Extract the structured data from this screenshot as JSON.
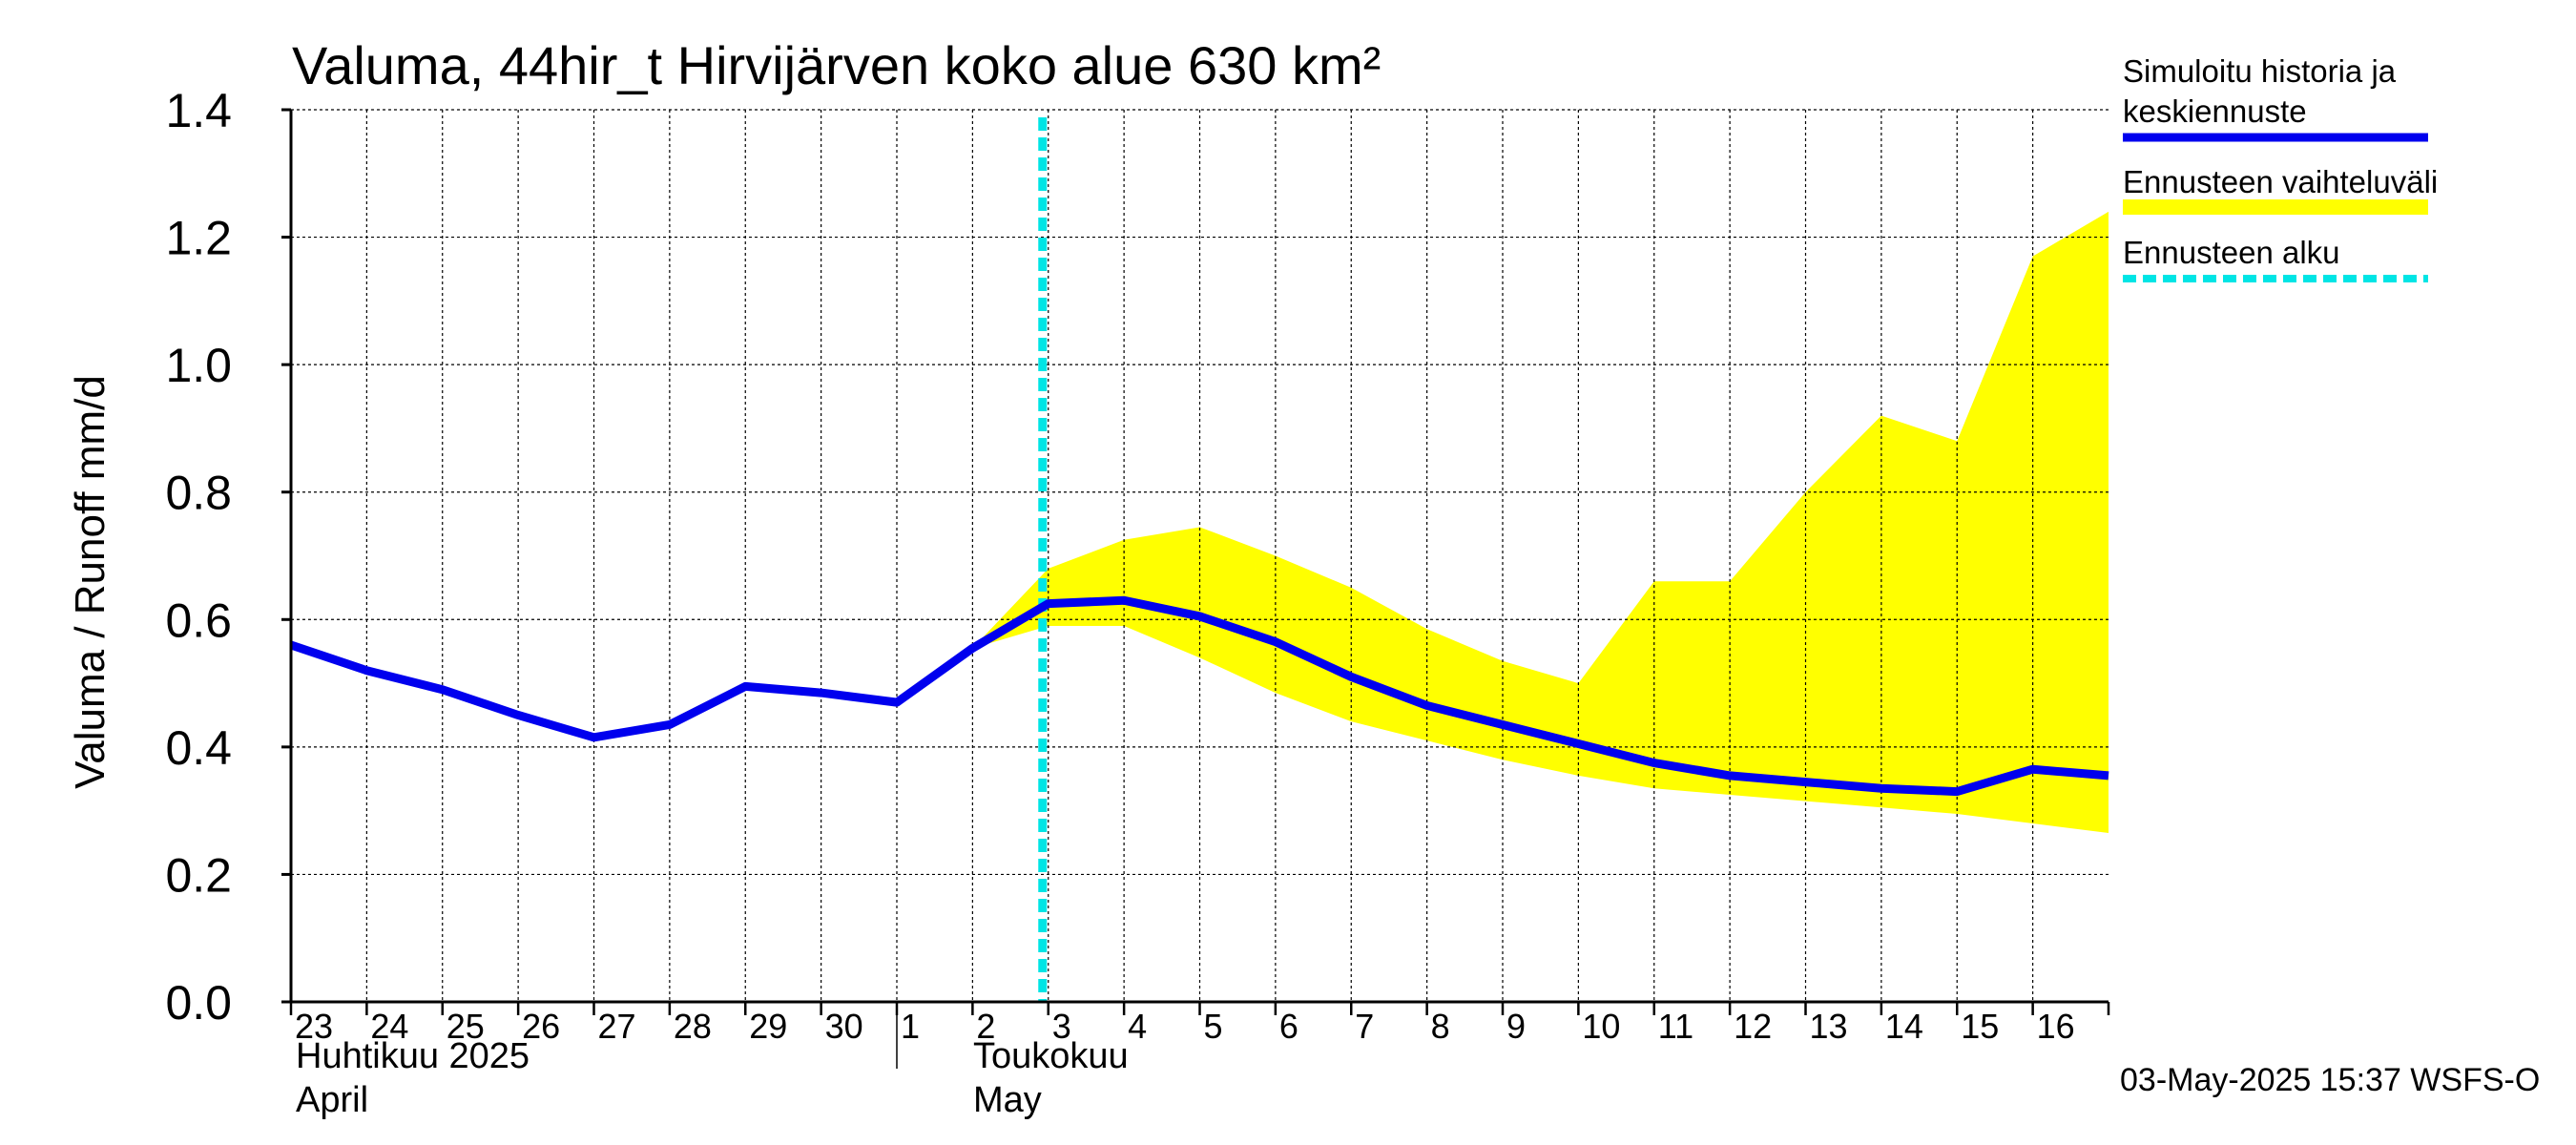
{
  "title": "Valuma, 44hir_t Hirvijärven koko alue 630 km²",
  "ylabel": "Valuma / Runoff    mm/d",
  "timestamp": "03-May-2025 15:37 WSFS-O",
  "month_labels": {
    "april_fi": "Huhtikuu  2025",
    "april_en": "April",
    "may_fi": "Toukokuu",
    "may_en": "May"
  },
  "legend": {
    "history_line1": "Simuloitu historia ja",
    "history_line2": "keskiennuste",
    "range": "Ennusteen vaihteluväli",
    "forecast_start": "Ennusteen alku"
  },
  "colors": {
    "history": "#0000ee",
    "range": "#ffff00",
    "forecast_start": "#00e5e5",
    "grid": "#000000"
  },
  "chart_data": {
    "type": "line",
    "title": "Valuma, 44hir_t Hirvijärven koko alue 630 km²",
    "xlabel": "",
    "ylabel": "Valuma / Runoff    mm/d",
    "ylim": [
      0.0,
      1.4
    ],
    "yticks": [
      "0.0",
      "0.2",
      "0.4",
      "0.6",
      "0.8",
      "1.0",
      "1.2",
      "1.4"
    ],
    "x_tick_labels": [
      "23",
      "24",
      "25",
      "26",
      "27",
      "28",
      "29",
      "30",
      "1",
      "2",
      "3",
      "4",
      "5",
      "6",
      "7",
      "8",
      "9",
      "10",
      "11",
      "12",
      "13",
      "14",
      "15",
      "16"
    ],
    "x_dates": [
      "2025-04-23",
      "2025-04-24",
      "2025-04-25",
      "2025-04-26",
      "2025-04-27",
      "2025-04-28",
      "2025-04-29",
      "2025-04-30",
      "2025-05-01",
      "2025-05-02",
      "2025-05-03",
      "2025-05-04",
      "2025-05-05",
      "2025-05-06",
      "2025-05-07",
      "2025-05-08",
      "2025-05-09",
      "2025-05-10",
      "2025-05-11",
      "2025-05-12",
      "2025-05-13",
      "2025-05-14",
      "2025-05-15",
      "2025-05-16",
      "2025-05-17"
    ],
    "grid": true,
    "legend_position": "right",
    "forecast_start": "2025-05-03",
    "series": [
      {
        "name": "Simuloitu historia ja keskiennuste",
        "type": "line",
        "values": [
          0.56,
          0.52,
          0.49,
          0.45,
          0.415,
          0.435,
          0.495,
          0.485,
          0.47,
          0.555,
          0.625,
          0.63,
          0.605,
          0.565,
          0.51,
          0.465,
          0.435,
          0.405,
          0.375,
          0.355,
          0.345,
          0.335,
          0.33,
          0.365,
          0.355
        ]
      },
      {
        "name": "Ennusteen vaihteluväli",
        "type": "area",
        "x_start": "2025-05-02",
        "upper": [
          0.555,
          0.68,
          0.725,
          0.745,
          0.7,
          0.65,
          0.585,
          0.535,
          0.5,
          0.66,
          0.66,
          0.8,
          0.92,
          0.88,
          1.17,
          1.24
        ],
        "lower": [
          0.555,
          0.59,
          0.59,
          0.54,
          0.485,
          0.44,
          0.41,
          0.38,
          0.355,
          0.335,
          0.325,
          0.315,
          0.305,
          0.295,
          0.28,
          0.265
        ]
      }
    ]
  }
}
